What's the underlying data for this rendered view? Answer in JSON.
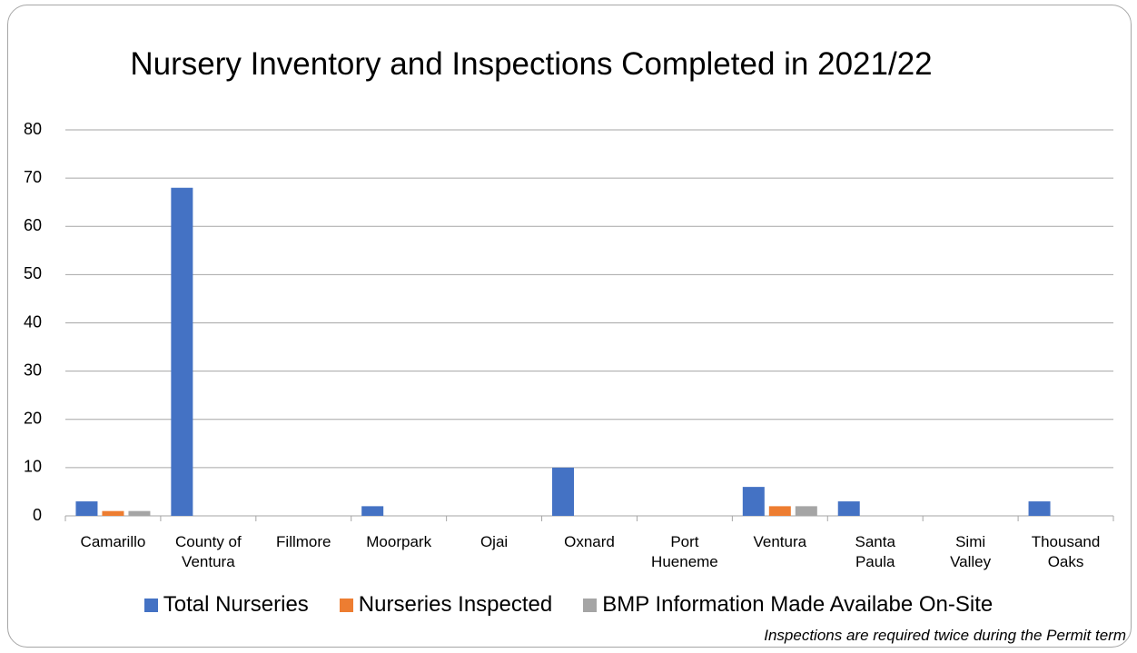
{
  "chart_data": {
    "type": "bar",
    "title": "Nursery Inventory and Inspections Completed in 2021/22",
    "categories": [
      "Camarillo",
      "County of Ventura",
      "Fillmore",
      "Moorpark",
      "Ojai",
      "Oxnard",
      "Port Hueneme",
      "Ventura",
      "Santa Paula",
      "Simi Valley",
      "Thousand Oaks"
    ],
    "series": [
      {
        "name": "Total Nurseries",
        "color": "#4472c4",
        "values": [
          3,
          68,
          0,
          2,
          0,
          10,
          0,
          6,
          3,
          0,
          3
        ]
      },
      {
        "name": "Nurseries Inspected",
        "color": "#ed7d31",
        "values": [
          1,
          0,
          0,
          0,
          0,
          0,
          0,
          2,
          0,
          0,
          0
        ]
      },
      {
        "name": "BMP Information Made Availabe On-Site",
        "color": "#a5a5a5",
        "values": [
          1,
          0,
          0,
          0,
          0,
          0,
          0,
          2,
          0,
          0,
          0
        ]
      }
    ],
    "ylim": [
      0,
      80
    ],
    "yticks": [
      0,
      10,
      20,
      30,
      40,
      50,
      60,
      70,
      80
    ],
    "grid": true,
    "legend": "bottom",
    "annotations": [
      "Inspections are required twice during the Permit term"
    ]
  }
}
